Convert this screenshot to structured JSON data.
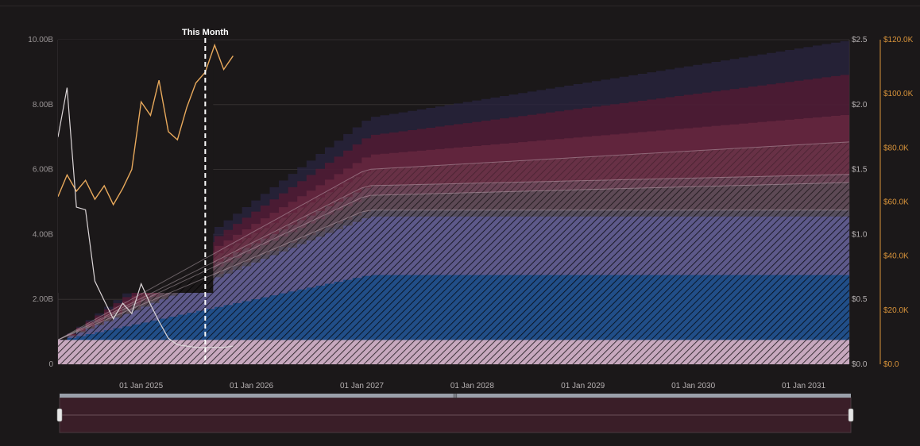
{
  "chart_data": {
    "type": "area",
    "annotation": "This Month",
    "x_axis": {
      "type": "date",
      "ticks": [
        "01 Jan 2025",
        "01 Jan 2026",
        "01 Jan 2027",
        "01 Jan 2028",
        "01 Jan 2029",
        "01 Jan 2030",
        "01 Jan 2031"
      ],
      "range": [
        "2024-04-01",
        "2031-06-01"
      ]
    },
    "y_left": {
      "ticks": [
        "0",
        "2.00B",
        "4.00B",
        "6.00B",
        "8.00B",
        "10.00B"
      ],
      "range": [
        0,
        10000000000
      ]
    },
    "y_right_usd": {
      "ticks": [
        "$0.0",
        "$0.5",
        "$1.0",
        "$1.5",
        "$2.0",
        "$2.5"
      ],
      "range": [
        0,
        2.5
      ]
    },
    "y_right_k": {
      "ticks": [
        "$0.0",
        "$20.0K",
        "$40.0K",
        "$60.0K",
        "$80.0K",
        "$100.0K",
        "$120.0K"
      ],
      "range": [
        0,
        120000
      ]
    },
    "this_month": "2025-08-01",
    "growth_end": "2027-01-15",
    "series": [
      {
        "color": "#d9b3c4",
        "start": 750000000,
        "end": 750000000,
        "opacity": 0.9
      },
      {
        "color": "#1d4e88",
        "start": 750000000,
        "end": 2750000000,
        "opacity": 0.95
      },
      {
        "color": "#5e5a8c",
        "start": 750000000,
        "end": 4550000000,
        "opacity": 0.95
      },
      {
        "color": "#565060",
        "start": 750000000,
        "end": 4750000000,
        "final": 4750000000,
        "opacity": 0.9
      },
      {
        "color": "#5a4a55",
        "start": 750000000,
        "end": 5200000000,
        "final": 5600000000,
        "opacity": 0.85
      },
      {
        "color": "#6a4a5a",
        "start": 750000000,
        "end": 5500000000,
        "final": 5850000000,
        "opacity": 0.8
      },
      {
        "color": "#6a3448",
        "start": 750000000,
        "end": 6000000000,
        "final": 6850000000,
        "opacity": 0.8
      },
      {
        "color": "#6a2a42",
        "start": 750000000,
        "end": 6450000000,
        "final": 7700000000,
        "opacity": 0.75
      },
      {
        "color": "#5a1a32",
        "start": 750000000,
        "end": 7050000000,
        "final": 8950000000,
        "opacity": 0.7
      },
      {
        "color": "#2a2440",
        "start": 750000000,
        "end": 7600000000,
        "final": 10000000000,
        "opacity": 0.75
      }
    ],
    "price_line": {
      "color": "#e8a95c",
      "points": [
        [
          "2024-04-01",
          62000
        ],
        [
          "2024-05-01",
          70000
        ],
        [
          "2024-06-01",
          64000
        ],
        [
          "2024-07-01",
          68000
        ],
        [
          "2024-08-01",
          61000
        ],
        [
          "2024-09-01",
          66000
        ],
        [
          "2024-10-01",
          59000
        ],
        [
          "2024-11-01",
          65000
        ],
        [
          "2024-12-01",
          72000
        ],
        [
          "2025-01-01",
          97000
        ],
        [
          "2025-02-01",
          92000
        ],
        [
          "2025-03-01",
          105000
        ],
        [
          "2025-04-01",
          86000
        ],
        [
          "2025-05-01",
          83000
        ],
        [
          "2025-06-01",
          95000
        ],
        [
          "2025-07-01",
          104000
        ],
        [
          "2025-08-01",
          108000
        ],
        [
          "2025-09-01",
          118000
        ],
        [
          "2025-10-01",
          109000
        ],
        [
          "2025-11-01",
          114000
        ]
      ]
    },
    "supply_line": {
      "color": "#dcd6d8",
      "points": [
        [
          "2024-04-01",
          1.75
        ],
        [
          "2024-05-01",
          2.13
        ],
        [
          "2024-06-01",
          1.21
        ],
        [
          "2024-07-01",
          1.19
        ],
        [
          "2024-08-01",
          0.64
        ],
        [
          "2024-09-01",
          0.49
        ],
        [
          "2024-10-01",
          0.35
        ],
        [
          "2024-11-01",
          0.47
        ],
        [
          "2024-12-01",
          0.39
        ],
        [
          "2025-01-01",
          0.62
        ],
        [
          "2025-02-01",
          0.46
        ],
        [
          "2025-03-01",
          0.33
        ],
        [
          "2025-04-01",
          0.2
        ],
        [
          "2025-05-01",
          0.15
        ],
        [
          "2025-06-01",
          0.14
        ],
        [
          "2025-07-01",
          0.13
        ],
        [
          "2025-08-01",
          0.13
        ],
        [
          "2025-09-01",
          0.13
        ],
        [
          "2025-10-01",
          0.13
        ],
        [
          "2025-11-01",
          0.14
        ]
      ]
    }
  },
  "colors": {
    "background": "#1b1819",
    "grid": "#3a3536",
    "annotation_line": "#ffffff",
    "navigator_bg": "#3a1e28",
    "navigator_bar": "#9aa0aa"
  }
}
